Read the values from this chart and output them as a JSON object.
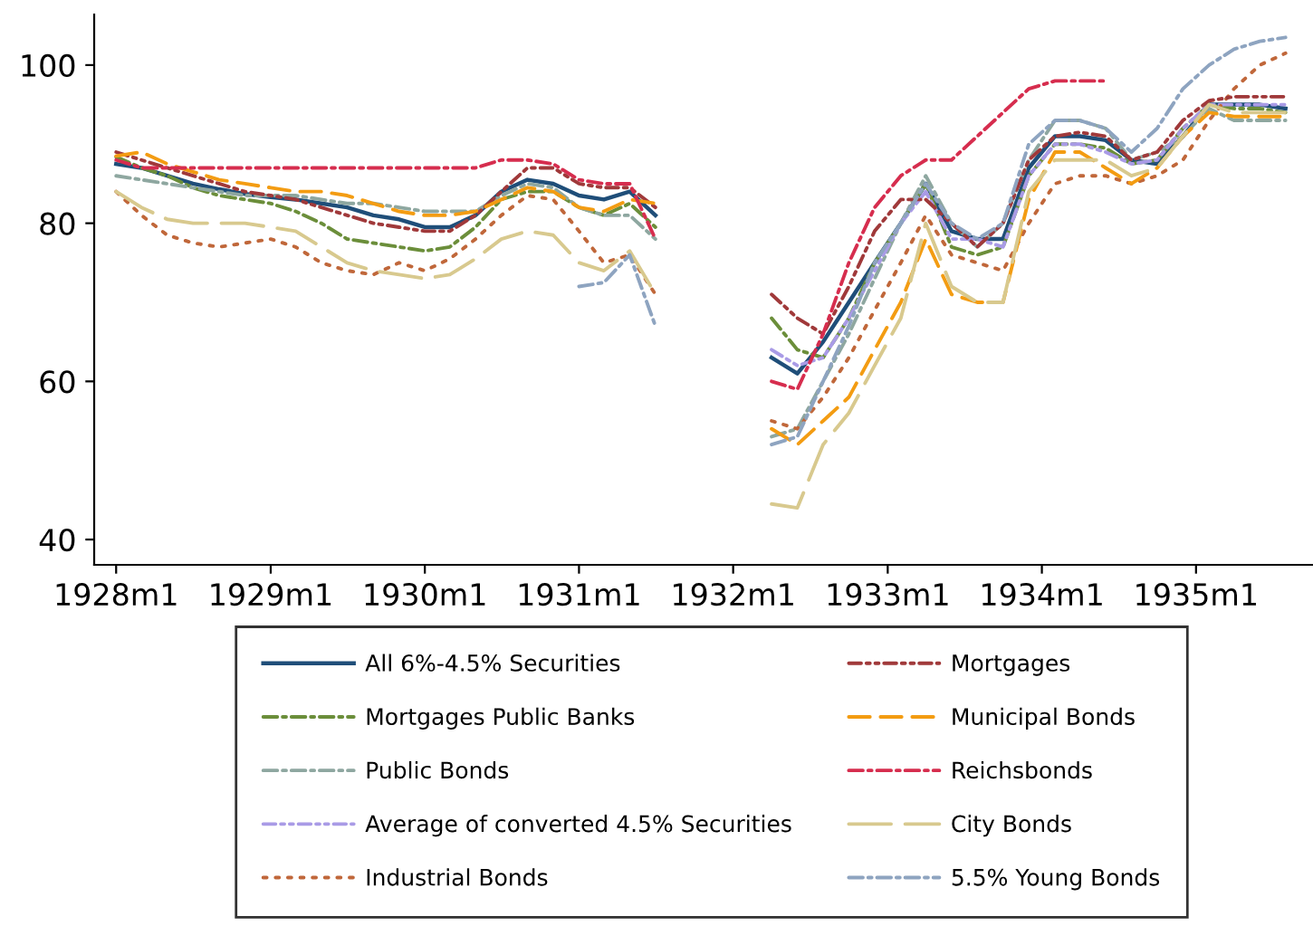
{
  "chart_data": {
    "type": "line",
    "x": [
      "1928-01",
      "1928-03",
      "1928-05",
      "1928-07",
      "1928-09",
      "1928-11",
      "1929-01",
      "1929-03",
      "1929-05",
      "1929-07",
      "1929-09",
      "1929-11",
      "1930-01",
      "1930-03",
      "1930-05",
      "1930-07",
      "1930-09",
      "1930-11",
      "1931-01",
      "1931-03",
      "1931-05",
      "1931-07",
      "1931-11",
      "1932-04",
      "1932-06",
      "1932-08",
      "1932-10",
      "1932-12",
      "1933-02",
      "1933-04",
      "1933-06",
      "1933-08",
      "1933-10",
      "1933-12",
      "1934-02",
      "1934-04",
      "1934-06",
      "1934-08",
      "1934-10",
      "1934-12",
      "1935-02",
      "1935-04",
      "1935-06",
      "1935-08"
    ],
    "series": [
      {
        "name": "All 6%-4.5% Securities",
        "color": "#1f4e79",
        "line_style": "solid",
        "values": [
          87.5,
          87,
          86,
          85,
          84.3,
          83.7,
          83.3,
          83,
          82.5,
          82,
          81,
          80.5,
          79.5,
          79.5,
          81,
          84,
          85.5,
          85,
          83.5,
          83,
          84,
          81,
          null,
          63,
          61,
          65,
          70,
          75,
          80,
          85,
          79,
          78,
          78,
          87,
          91,
          91,
          90.5,
          88,
          87.5,
          91,
          95,
          95,
          95,
          94.5
        ]
      },
      {
        "name": "Mortgages Public Banks",
        "color": "#6b8e3a",
        "line_style": "dashdot",
        "values": [
          88.4,
          87,
          86,
          84.5,
          83.5,
          83,
          82.5,
          81.5,
          80,
          78,
          77.5,
          77,
          76.5,
          77,
          79.5,
          83,
          84,
          84,
          82,
          81,
          82.5,
          79.5,
          null,
          68,
          64,
          63,
          68,
          75,
          80,
          85,
          77,
          76,
          77,
          86,
          90,
          90,
          89.5,
          87.5,
          88,
          92,
          95,
          94.5,
          94.5,
          94
        ]
      },
      {
        "name": "Public Bonds",
        "color": "#8ea7a0",
        "line_style": "dashdot",
        "values": [
          86,
          85.5,
          85,
          84.5,
          84,
          83.5,
          83.5,
          83.5,
          83,
          82.5,
          82.5,
          82,
          81.5,
          81.5,
          81.5,
          83.5,
          85,
          84.5,
          82,
          81,
          81,
          78,
          null,
          53,
          54,
          60,
          66,
          73,
          80,
          86,
          80,
          77,
          80,
          88,
          93,
          93,
          92,
          88,
          89,
          91,
          94.5,
          93,
          93,
          93
        ]
      },
      {
        "name": "Average of converted 4.5% Securities",
        "color": "#a99be6",
        "line_style": "dashdotdot",
        "values": [
          null,
          null,
          null,
          null,
          null,
          null,
          null,
          null,
          null,
          null,
          null,
          null,
          null,
          null,
          null,
          null,
          null,
          null,
          null,
          null,
          null,
          null,
          null,
          64,
          62,
          63,
          68,
          74,
          80,
          84,
          78,
          78,
          77,
          86,
          90,
          90,
          89,
          87.5,
          88,
          92,
          95,
          95,
          95,
          95
        ]
      },
      {
        "name": "Industrial Bonds",
        "color": "#c0673a",
        "line_style": "dotted",
        "values": [
          84,
          81,
          78.5,
          77.5,
          77,
          77.5,
          78,
          77,
          75,
          74,
          73.5,
          75,
          74,
          75.5,
          78,
          81,
          83.5,
          83,
          79,
          75,
          76,
          71,
          null,
          55,
          54,
          58,
          63,
          69,
          75,
          81,
          76,
          75,
          74,
          80,
          85,
          86,
          86,
          85,
          86,
          88,
          93,
          97,
          100,
          101.5
        ]
      },
      {
        "name": "Mortgages",
        "color": "#a0393a",
        "line_style": "dashdotdot",
        "values": [
          89,
          88,
          87,
          86,
          85,
          84,
          83.5,
          83,
          82,
          81,
          80,
          79.5,
          79,
          79,
          81,
          84,
          87,
          87,
          85,
          84.5,
          84.5,
          82,
          null,
          71,
          68,
          66,
          72,
          79,
          83,
          83,
          80,
          77,
          80,
          88,
          91,
          91.5,
          91,
          88,
          89,
          93,
          95.5,
          96,
          96,
          96
        ]
      },
      {
        "name": "Municipal Bonds",
        "color": "#f39c12",
        "line_style": "dashed",
        "values": [
          88.5,
          89,
          87.5,
          86.5,
          85.5,
          85,
          84.5,
          84,
          84,
          83.5,
          82.5,
          81.5,
          81,
          81,
          81.5,
          83,
          84.5,
          84,
          82,
          81.5,
          83,
          82.5,
          null,
          54,
          52,
          55,
          58,
          64,
          70,
          78,
          71,
          70,
          70,
          83,
          89,
          89,
          87,
          85,
          87,
          91,
          94,
          93.5,
          93.5,
          93.5
        ]
      },
      {
        "name": "Reichsbonds",
        "color": "#d62d4e",
        "line_style": "dashdot",
        "values": [
          88,
          87,
          87,
          87,
          87,
          87,
          87,
          87,
          87,
          87,
          87,
          87,
          87,
          87,
          87,
          88,
          88,
          87.5,
          85.5,
          85,
          85,
          78,
          null,
          60,
          59,
          66,
          75,
          82,
          86,
          88,
          88,
          91,
          94,
          97,
          98,
          98,
          98,
          null,
          null,
          null,
          null,
          null,
          null,
          null
        ]
      },
      {
        "name": "City Bonds",
        "color": "#d8c98e",
        "line_style": "longdash",
        "values": [
          84,
          82,
          80.5,
          80,
          80,
          80,
          79.5,
          79,
          77,
          75,
          74,
          73.5,
          73,
          73.5,
          75.5,
          78,
          79,
          78.5,
          75,
          74,
          76.5,
          71,
          null,
          44.5,
          44,
          52,
          56,
          62,
          68,
          80,
          72,
          70,
          70,
          84,
          88,
          88,
          88,
          86,
          87,
          91,
          95,
          94,
          94,
          94
        ]
      },
      {
        "name": "5.5% Young Bonds",
        "color": "#8ea4c0",
        "line_style": "dashdot",
        "values": [
          null,
          null,
          null,
          null,
          null,
          null,
          null,
          null,
          null,
          null,
          null,
          null,
          null,
          null,
          null,
          null,
          null,
          null,
          72,
          72.5,
          76,
          67,
          null,
          52,
          53,
          60,
          67,
          75,
          80,
          85,
          80,
          78,
          80,
          90,
          93,
          93,
          92,
          89,
          92,
          97,
          100,
          102,
          103,
          103.5
        ]
      }
    ],
    "xlim": [
      "1927-11-10",
      "1935-10-05"
    ],
    "xticks": [
      {
        "value": "1928-01",
        "label": "1928m1"
      },
      {
        "value": "1929-01",
        "label": "1929m1"
      },
      {
        "value": "1930-01",
        "label": "1930m1"
      },
      {
        "value": "1931-01",
        "label": "1931m1"
      },
      {
        "value": "1932-01",
        "label": "1932m1"
      },
      {
        "value": "1933-01",
        "label": "1933m1"
      },
      {
        "value": "1934-01",
        "label": "1934m1"
      },
      {
        "value": "1935-01",
        "label": "1935m1"
      }
    ],
    "ylim": [
      36.8,
      106.4
    ],
    "yticks": [
      40,
      60,
      80,
      100
    ],
    "grid": false,
    "legend": "bottom"
  }
}
